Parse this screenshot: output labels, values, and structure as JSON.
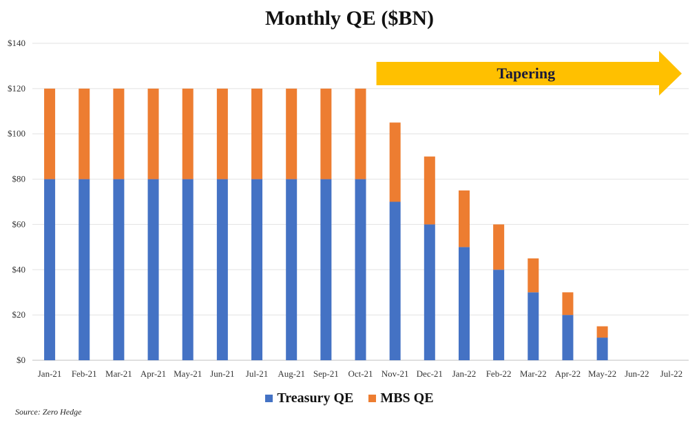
{
  "chart_data": {
    "type": "bar",
    "stacked": true,
    "title": "Monthly QE ($BN)",
    "categories": [
      "Jan-21",
      "Feb-21",
      "Mar-21",
      "Apr-21",
      "May-21",
      "Jun-21",
      "Jul-21",
      "Aug-21",
      "Sep-21",
      "Oct-21",
      "Nov-21",
      "Dec-21",
      "Jan-22",
      "Feb-22",
      "Mar-22",
      "Apr-22",
      "May-22",
      "Jun-22",
      "Jul-22"
    ],
    "series": [
      {
        "name": "Treasury QE",
        "color": "#4472C4",
        "values": [
          80,
          80,
          80,
          80,
          80,
          80,
          80,
          80,
          80,
          80,
          70,
          60,
          50,
          40,
          30,
          20,
          10,
          0,
          0
        ]
      },
      {
        "name": "MBS QE",
        "color": "#ED7D31",
        "values": [
          40,
          40,
          40,
          40,
          40,
          40,
          40,
          40,
          40,
          40,
          35,
          30,
          25,
          20,
          15,
          10,
          5,
          0,
          0
        ]
      }
    ],
    "ylim": [
      0,
      140
    ],
    "yticks": [
      0,
      20,
      40,
      60,
      80,
      100,
      120,
      140
    ],
    "ytick_labels": [
      "$0",
      "$20",
      "$40",
      "$60",
      "$80",
      "$100",
      "$120",
      "$140"
    ],
    "grid": true,
    "legend": "bottom-center",
    "annotation": {
      "text": "Tapering",
      "color": "#FFC000",
      "from_category": "Nov-21"
    },
    "source": "Source: Zero Hedge"
  }
}
